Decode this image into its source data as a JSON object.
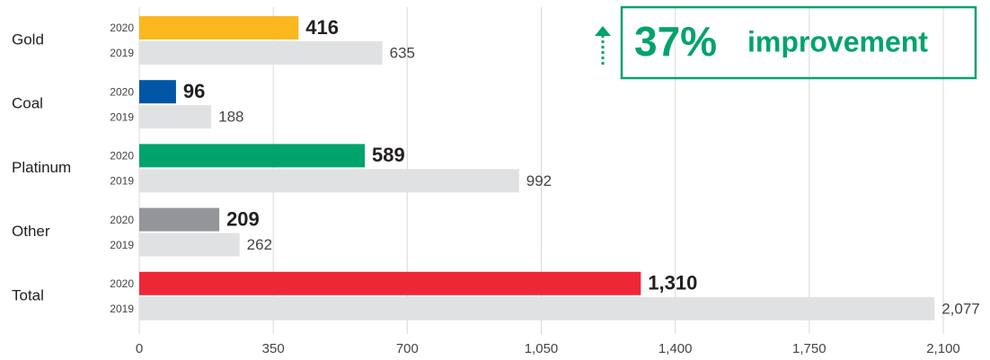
{
  "chart_data": {
    "type": "hbar",
    "annotation": {
      "value": "37%",
      "text": "improvement",
      "color": "#00a36b"
    },
    "categories": [
      "Gold",
      "Coal",
      "Platinum",
      "Other",
      "Total"
    ],
    "series": [
      {
        "name": "2020",
        "colors": [
          "#fbb71e",
          "#0055a5",
          "#00a36b",
          "#939598",
          "#ee2737"
        ],
        "values": [
          416,
          96,
          589,
          209,
          1310
        ],
        "value_labels": [
          "416",
          "96",
          "589",
          "209",
          "1,310"
        ]
      },
      {
        "name": "2019",
        "color": "#e0e1e2",
        "values": [
          635,
          188,
          992,
          262,
          2077
        ],
        "value_labels": [
          "635",
          "188",
          "992",
          "262",
          "2,077"
        ]
      }
    ],
    "xlim": [
      0,
      2100
    ],
    "xticks": [
      0,
      350,
      700,
      {
        "value": 1050,
        "label": "1,050"
      },
      {
        "value": 1400,
        "label": "1,400"
      },
      {
        "value": 1750,
        "label": "1,750"
      },
      {
        "value": 2100,
        "label": "2,100"
      }
    ],
    "grid": true
  }
}
